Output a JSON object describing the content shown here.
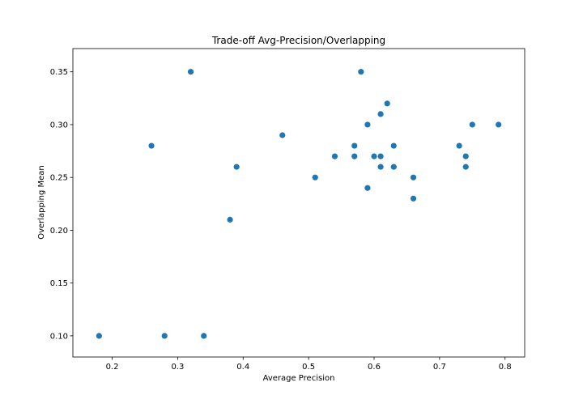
{
  "chart_data": {
    "type": "scatter",
    "title": "Trade-off Avg-Precision/Overlapping",
    "xlabel": "Average Precision",
    "ylabel": "Overlapping Mean",
    "xlim": [
      0.14,
      0.83
    ],
    "ylim": [
      0.08,
      0.372
    ],
    "xticks": [
      0.2,
      0.3,
      0.4,
      0.5,
      0.6,
      0.7,
      0.8
    ],
    "xtick_labels": [
      "0.2",
      "0.3",
      "0.4",
      "0.5",
      "0.6",
      "0.7",
      "0.8"
    ],
    "yticks": [
      0.1,
      0.15,
      0.2,
      0.25,
      0.3,
      0.35
    ],
    "ytick_labels": [
      "0.10",
      "0.15",
      "0.20",
      "0.25",
      "0.30",
      "0.35"
    ],
    "grid": false,
    "marker_color": "#1f77b4",
    "points": [
      {
        "x": 0.18,
        "y": 0.1
      },
      {
        "x": 0.26,
        "y": 0.28
      },
      {
        "x": 0.28,
        "y": 0.1
      },
      {
        "x": 0.32,
        "y": 0.35
      },
      {
        "x": 0.34,
        "y": 0.1
      },
      {
        "x": 0.38,
        "y": 0.21
      },
      {
        "x": 0.39,
        "y": 0.26
      },
      {
        "x": 0.46,
        "y": 0.29
      },
      {
        "x": 0.51,
        "y": 0.25
      },
      {
        "x": 0.54,
        "y": 0.27
      },
      {
        "x": 0.57,
        "y": 0.28
      },
      {
        "x": 0.57,
        "y": 0.27
      },
      {
        "x": 0.58,
        "y": 0.35
      },
      {
        "x": 0.59,
        "y": 0.3
      },
      {
        "x": 0.59,
        "y": 0.24
      },
      {
        "x": 0.6,
        "y": 0.27
      },
      {
        "x": 0.61,
        "y": 0.31
      },
      {
        "x": 0.61,
        "y": 0.27
      },
      {
        "x": 0.61,
        "y": 0.26
      },
      {
        "x": 0.62,
        "y": 0.32
      },
      {
        "x": 0.63,
        "y": 0.28
      },
      {
        "x": 0.63,
        "y": 0.26
      },
      {
        "x": 0.66,
        "y": 0.25
      },
      {
        "x": 0.66,
        "y": 0.23
      },
      {
        "x": 0.73,
        "y": 0.28
      },
      {
        "x": 0.74,
        "y": 0.27
      },
      {
        "x": 0.74,
        "y": 0.26
      },
      {
        "x": 0.75,
        "y": 0.3
      },
      {
        "x": 0.79,
        "y": 0.3
      }
    ]
  }
}
